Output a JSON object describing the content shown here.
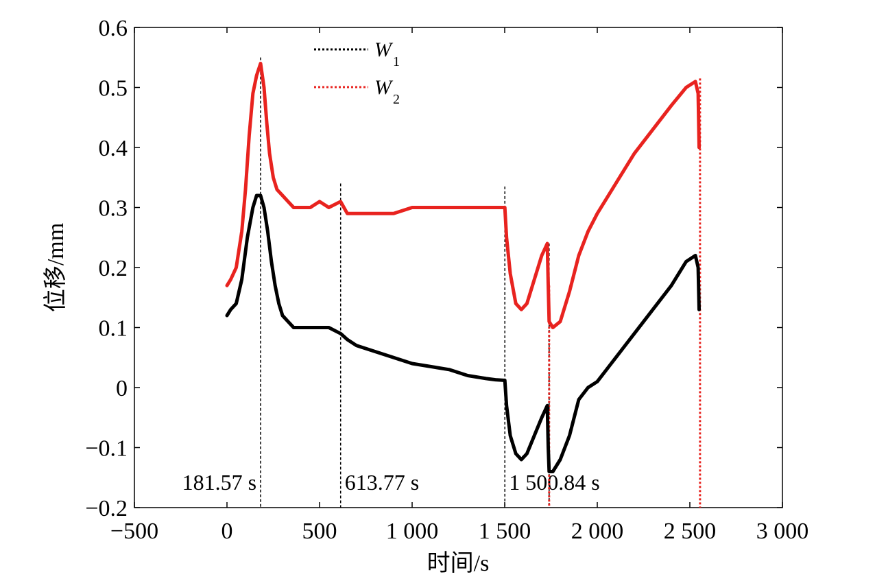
{
  "chart_data": {
    "type": "line",
    "xlabel": "时间/s",
    "ylabel": "位移/mm",
    "xlim": [
      -500,
      3000
    ],
    "ylim": [
      -0.2,
      0.6
    ],
    "x_ticks": [
      -500,
      0,
      500,
      1000,
      1500,
      2000,
      2500,
      3000
    ],
    "x_tick_labels": [
      "−500",
      "0",
      "500",
      "1 000",
      "1 500",
      "2 000",
      "2 500",
      "3 000"
    ],
    "y_ticks": [
      -0.2,
      -0.1,
      0,
      0.1,
      0.2,
      0.3,
      0.4,
      0.5,
      0.6
    ],
    "y_tick_labels": [
      "−0.2",
      "−0.1",
      "0",
      "0.1",
      "0.2",
      "0.3",
      "0.4",
      "0.5",
      "0.6"
    ],
    "grid": false,
    "legend_position": "top-center",
    "series": [
      {
        "name": "W",
        "subscript": "1",
        "color": "#000000",
        "x": [
          0,
          20,
          50,
          80,
          110,
          140,
          160,
          181.57,
          200,
          220,
          240,
          260,
          280,
          300,
          330,
          360,
          400,
          450,
          500,
          550,
          613.77,
          650,
          700,
          800,
          900,
          1000,
          1100,
          1200,
          1300,
          1400,
          1450,
          1500.84,
          1510,
          1530,
          1560,
          1590,
          1620,
          1660,
          1700,
          1730,
          1735,
          1740,
          1760,
          1800,
          1850,
          1900,
          1950,
          2000,
          2100,
          2200,
          2300,
          2400,
          2480,
          2530,
          2545,
          2550
        ],
        "y": [
          0.12,
          0.13,
          0.14,
          0.18,
          0.25,
          0.3,
          0.32,
          0.32,
          0.3,
          0.26,
          0.21,
          0.17,
          0.14,
          0.12,
          0.11,
          0.1,
          0.1,
          0.1,
          0.1,
          0.1,
          0.09,
          0.08,
          0.07,
          0.06,
          0.05,
          0.04,
          0.035,
          0.03,
          0.02,
          0.015,
          0.013,
          0.012,
          -0.03,
          -0.08,
          -0.11,
          -0.12,
          -0.11,
          -0.08,
          -0.05,
          -0.03,
          -0.1,
          -0.14,
          -0.14,
          -0.12,
          -0.08,
          -0.02,
          0.0,
          0.01,
          0.05,
          0.09,
          0.13,
          0.17,
          0.21,
          0.22,
          0.2,
          0.13
        ]
      },
      {
        "name": "W",
        "subscript": "2",
        "color": "#e8231f",
        "x": [
          0,
          20,
          50,
          80,
          100,
          120,
          140,
          160,
          181.57,
          200,
          215,
          230,
          250,
          270,
          300,
          330,
          360,
          400,
          450,
          500,
          550,
          613.77,
          650,
          700,
          800,
          900,
          1000,
          1100,
          1200,
          1300,
          1400,
          1450,
          1500.84,
          1510,
          1530,
          1560,
          1590,
          1620,
          1660,
          1700,
          1730,
          1735,
          1740,
          1760,
          1800,
          1850,
          1900,
          1950,
          2000,
          2100,
          2200,
          2300,
          2400,
          2480,
          2530,
          2545,
          2550
        ],
        "y": [
          0.17,
          0.18,
          0.2,
          0.26,
          0.33,
          0.42,
          0.49,
          0.52,
          0.54,
          0.5,
          0.44,
          0.39,
          0.35,
          0.33,
          0.32,
          0.31,
          0.3,
          0.3,
          0.3,
          0.31,
          0.3,
          0.31,
          0.29,
          0.29,
          0.29,
          0.29,
          0.3,
          0.3,
          0.3,
          0.3,
          0.3,
          0.3,
          0.3,
          0.25,
          0.19,
          0.14,
          0.13,
          0.14,
          0.18,
          0.22,
          0.24,
          0.17,
          0.11,
          0.1,
          0.11,
          0.16,
          0.22,
          0.26,
          0.29,
          0.34,
          0.39,
          0.43,
          0.47,
          0.5,
          0.51,
          0.49,
          0.4
        ]
      }
    ],
    "vertical_markers": [
      {
        "x": 181.57,
        "y_top": 0.55,
        "color": "#000000",
        "label": "181.57 s",
        "label_side": "left"
      },
      {
        "x": 613.77,
        "y_top": 0.34,
        "color": "#000000",
        "label": "613.77 s",
        "label_side": "right"
      },
      {
        "x": 1500.84,
        "y_top": 0.335,
        "color": "#000000",
        "label": "1 500.84 s",
        "label_side": "right"
      },
      {
        "x": 1740,
        "y_top": 0.24,
        "color": "#000000",
        "label": "",
        "label_side": "none"
      },
      {
        "x": 1740,
        "y_top": 0.17,
        "color": "#e8231f",
        "label": "",
        "label_side": "none"
      },
      {
        "x": 2555,
        "y_top": 0.515,
        "color": "#e8231f",
        "label": "",
        "label_side": "none"
      }
    ]
  }
}
